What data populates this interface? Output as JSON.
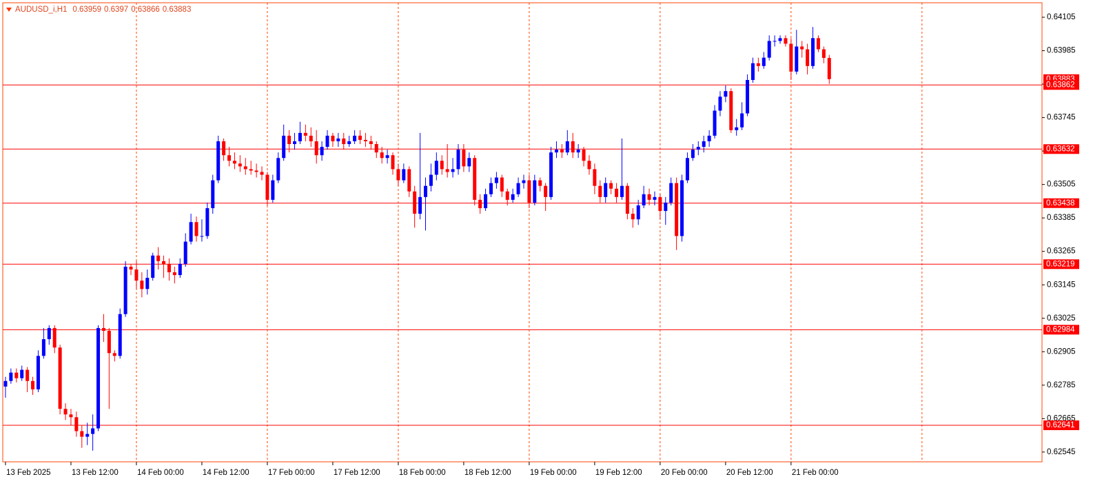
{
  "chart_data": {
    "type": "candlestick",
    "title": "AUDUSD_i,H1",
    "up_color": "#0000ff",
    "down_color": "#ff0000",
    "level_color": "#ff0000",
    "ylim": [
      0.6251,
      0.64157
    ],
    "xlim": [
      -0.5,
      190
    ],
    "yticks": [
      0.64105,
      0.63985,
      0.63865,
      0.63745,
      0.63625,
      0.63505,
      0.63385,
      0.63265,
      0.63145,
      0.63025,
      0.62905,
      0.62785,
      0.62665,
      0.62545
    ],
    "xticks": [
      {
        "value": 0,
        "label": "13 Feb 2025"
      },
      {
        "value": 12,
        "label": "13 Feb 12:00"
      },
      {
        "value": 24,
        "label": "14 Feb 00:00"
      },
      {
        "value": 36,
        "label": "14 Feb 12:00"
      },
      {
        "value": 48,
        "label": "17 Feb 00:00"
      },
      {
        "value": 60,
        "label": "17 Feb 12:00"
      },
      {
        "value": 72,
        "label": "18 Feb 00:00"
      },
      {
        "value": 84,
        "label": "18 Feb 12:00"
      },
      {
        "value": 96,
        "label": "19 Feb 00:00"
      },
      {
        "value": 108,
        "label": "19 Feb 12:00"
      },
      {
        "value": 120,
        "label": "20 Feb 00:00"
      },
      {
        "value": 132,
        "label": "20 Feb 12:00"
      },
      {
        "value": 144,
        "label": "21 Feb 00:00"
      }
    ],
    "separators": [
      24,
      48,
      72,
      96,
      120,
      144,
      168
    ],
    "levels": [
      0.63862,
      0.63632,
      0.63438,
      0.63219,
      0.62984,
      0.62641
    ],
    "candles": [
      [
        0.6278,
        0.62815,
        0.6274,
        0.628
      ],
      [
        0.628,
        0.62845,
        0.6279,
        0.6283
      ],
      [
        0.6283,
        0.62845,
        0.62795,
        0.6281
      ],
      [
        0.6281,
        0.62855,
        0.628,
        0.6284
      ],
      [
        0.6284,
        0.6285,
        0.6276,
        0.628
      ],
      [
        0.628,
        0.62815,
        0.6275,
        0.6277
      ],
      [
        0.6277,
        0.6291,
        0.6276,
        0.6289
      ],
      [
        0.6289,
        0.6299,
        0.6288,
        0.6295
      ],
      [
        0.6295,
        0.63,
        0.6293,
        0.6299
      ],
      [
        0.6299,
        0.63,
        0.629,
        0.6292
      ],
      [
        0.6292,
        0.6293,
        0.6268,
        0.627
      ],
      [
        0.627,
        0.6272,
        0.6266,
        0.6268
      ],
      [
        0.6268,
        0.627,
        0.6264,
        0.6267
      ],
      [
        0.6267,
        0.6269,
        0.626,
        0.6262
      ],
      [
        0.6262,
        0.6264,
        0.6256,
        0.626
      ],
      [
        0.626,
        0.6265,
        0.6257,
        0.6261
      ],
      [
        0.6261,
        0.6268,
        0.6255,
        0.6263
      ],
      [
        0.6263,
        0.63,
        0.6262,
        0.6299
      ],
      [
        0.6299,
        0.6304,
        0.6294,
        0.6298
      ],
      [
        0.6298,
        0.6299,
        0.627,
        0.629
      ],
      [
        0.629,
        0.6291,
        0.6287,
        0.6289
      ],
      [
        0.6289,
        0.6306,
        0.6288,
        0.6304
      ],
      [
        0.6304,
        0.6323,
        0.6303,
        0.6321
      ],
      [
        0.6321,
        0.6322,
        0.6318,
        0.632
      ],
      [
        0.632,
        0.6323,
        0.6313,
        0.6316
      ],
      [
        0.6316,
        0.6319,
        0.631,
        0.6313
      ],
      [
        0.6313,
        0.632,
        0.6311,
        0.6317
      ],
      [
        0.6317,
        0.6326,
        0.6316,
        0.6325
      ],
      [
        0.6325,
        0.6328,
        0.632,
        0.6323
      ],
      [
        0.6323,
        0.6325,
        0.6317,
        0.6322
      ],
      [
        0.6322,
        0.6324,
        0.6316,
        0.6319
      ],
      [
        0.6319,
        0.6321,
        0.6315,
        0.6318
      ],
      [
        0.6318,
        0.6324,
        0.6317,
        0.6322
      ],
      [
        0.6322,
        0.6333,
        0.6321,
        0.633
      ],
      [
        0.633,
        0.634,
        0.6329,
        0.6337
      ],
      [
        0.6337,
        0.6339,
        0.633,
        0.6332
      ],
      [
        0.6332,
        0.6338,
        0.633,
        0.6332
      ],
      [
        0.6332,
        0.6344,
        0.6331,
        0.6342
      ],
      [
        0.6342,
        0.6354,
        0.634,
        0.6352
      ],
      [
        0.6352,
        0.6368,
        0.6351,
        0.6366
      ],
      [
        0.6366,
        0.6367,
        0.6359,
        0.6361
      ],
      [
        0.6361,
        0.6364,
        0.6357,
        0.6359
      ],
      [
        0.6359,
        0.6362,
        0.6356,
        0.6358
      ],
      [
        0.6358,
        0.6361,
        0.6355,
        0.6357
      ],
      [
        0.6357,
        0.636,
        0.6354,
        0.6356
      ],
      [
        0.6356,
        0.6359,
        0.6354,
        0.63555
      ],
      [
        0.63555,
        0.6358,
        0.6353,
        0.6355
      ],
      [
        0.6355,
        0.6357,
        0.6352,
        0.6354
      ],
      [
        0.6354,
        0.6355,
        0.6343,
        0.6345
      ],
      [
        0.6345,
        0.6354,
        0.6344,
        0.6352
      ],
      [
        0.6352,
        0.6362,
        0.6351,
        0.636
      ],
      [
        0.636,
        0.6372,
        0.6359,
        0.6368
      ],
      [
        0.6368,
        0.637,
        0.6362,
        0.6365
      ],
      [
        0.6365,
        0.6369,
        0.6363,
        0.6366
      ],
      [
        0.6366,
        0.6373,
        0.6365,
        0.6369
      ],
      [
        0.6369,
        0.6372,
        0.6366,
        0.6368
      ],
      [
        0.6368,
        0.6371,
        0.6364,
        0.6366
      ],
      [
        0.6366,
        0.637,
        0.6358,
        0.6361
      ],
      [
        0.6361,
        0.6366,
        0.6359,
        0.6364
      ],
      [
        0.6364,
        0.637,
        0.6363,
        0.6368
      ],
      [
        0.6368,
        0.6369,
        0.6364,
        0.6366
      ],
      [
        0.6366,
        0.6369,
        0.6364,
        0.6367
      ],
      [
        0.6367,
        0.6369,
        0.6363,
        0.6365
      ],
      [
        0.6365,
        0.6368,
        0.6364,
        0.6366
      ],
      [
        0.6366,
        0.637,
        0.6365,
        0.6368
      ],
      [
        0.6368,
        0.637,
        0.6365,
        0.63665
      ],
      [
        0.63665,
        0.6369,
        0.6364,
        0.6366
      ],
      [
        0.6366,
        0.6368,
        0.6363,
        0.6365
      ],
      [
        0.6365,
        0.6366,
        0.636,
        0.6362
      ],
      [
        0.6362,
        0.6364,
        0.6358,
        0.636
      ],
      [
        0.636,
        0.6363,
        0.6358,
        0.6361
      ],
      [
        0.6361,
        0.6362,
        0.6354,
        0.6356
      ],
      [
        0.6356,
        0.6358,
        0.635,
        0.6352
      ],
      [
        0.6352,
        0.6358,
        0.6351,
        0.6356
      ],
      [
        0.6356,
        0.6357,
        0.6346,
        0.6348
      ],
      [
        0.6348,
        0.635,
        0.6335,
        0.634
      ],
      [
        0.634,
        0.6369,
        0.6338,
        0.6346
      ],
      [
        0.6346,
        0.6353,
        0.6334,
        0.635
      ],
      [
        0.635,
        0.6358,
        0.6348,
        0.6354
      ],
      [
        0.6354,
        0.6362,
        0.6352,
        0.6359
      ],
      [
        0.6359,
        0.6361,
        0.6354,
        0.6356
      ],
      [
        0.6356,
        0.6365,
        0.6353,
        0.6355
      ],
      [
        0.6355,
        0.636,
        0.6353,
        0.6356
      ],
      [
        0.6356,
        0.6365,
        0.6354,
        0.6363
      ],
      [
        0.6363,
        0.6365,
        0.6355,
        0.6357
      ],
      [
        0.6357,
        0.6362,
        0.6355,
        0.636
      ],
      [
        0.636,
        0.6361,
        0.6343,
        0.6345
      ],
      [
        0.6345,
        0.6347,
        0.634,
        0.6342
      ],
      [
        0.6342,
        0.6349,
        0.6341,
        0.6347
      ],
      [
        0.6347,
        0.6353,
        0.6346,
        0.6351
      ],
      [
        0.6351,
        0.6355,
        0.6349,
        0.6353
      ],
      [
        0.6353,
        0.6354,
        0.6346,
        0.6348
      ],
      [
        0.6348,
        0.6349,
        0.6343,
        0.6345
      ],
      [
        0.6345,
        0.6349,
        0.6344,
        0.6347
      ],
      [
        0.6347,
        0.6353,
        0.6346,
        0.6351
      ],
      [
        0.6351,
        0.6354,
        0.6349,
        0.6352
      ],
      [
        0.6352,
        0.6354,
        0.6342,
        0.6344
      ],
      [
        0.6344,
        0.6354,
        0.6343,
        0.6352
      ],
      [
        0.6352,
        0.6353,
        0.6348,
        0.635
      ],
      [
        0.635,
        0.6351,
        0.6341,
        0.6346
      ],
      [
        0.6346,
        0.6364,
        0.6345,
        0.6362
      ],
      [
        0.6362,
        0.6366,
        0.636,
        0.6363
      ],
      [
        0.6363,
        0.6365,
        0.636,
        0.6362
      ],
      [
        0.6362,
        0.637,
        0.6361,
        0.6366
      ],
      [
        0.6366,
        0.6369,
        0.636,
        0.6362
      ],
      [
        0.6362,
        0.6365,
        0.636,
        0.6363
      ],
      [
        0.6363,
        0.6364,
        0.6357,
        0.6359
      ],
      [
        0.6359,
        0.6361,
        0.6354,
        0.6356
      ],
      [
        0.6356,
        0.6358,
        0.6347,
        0.635
      ],
      [
        0.635,
        0.6352,
        0.6344,
        0.6346
      ],
      [
        0.6346,
        0.6353,
        0.6344,
        0.6351
      ],
      [
        0.6351,
        0.6352,
        0.6347,
        0.6349
      ],
      [
        0.6349,
        0.6351,
        0.6344,
        0.6346
      ],
      [
        0.6346,
        0.6367,
        0.6345,
        0.635
      ],
      [
        0.635,
        0.6351,
        0.6338,
        0.634
      ],
      [
        0.634,
        0.6342,
        0.6335,
        0.6338
      ],
      [
        0.6338,
        0.6345,
        0.6336,
        0.6343
      ],
      [
        0.6343,
        0.635,
        0.6342,
        0.6347
      ],
      [
        0.6347,
        0.6349,
        0.6343,
        0.6345
      ],
      [
        0.6345,
        0.6348,
        0.6343,
        0.6346
      ],
      [
        0.6346,
        0.6347,
        0.6338,
        0.6341
      ],
      [
        0.6341,
        0.6346,
        0.6336,
        0.6344
      ],
      [
        0.6344,
        0.6353,
        0.6343,
        0.6351
      ],
      [
        0.6351,
        0.6353,
        0.6327,
        0.6332
      ],
      [
        0.6332,
        0.6354,
        0.633,
        0.6352
      ],
      [
        0.6352,
        0.6362,
        0.6351,
        0.636
      ],
      [
        0.636,
        0.6365,
        0.6359,
        0.6363
      ],
      [
        0.6363,
        0.6366,
        0.6361,
        0.6364
      ],
      [
        0.6364,
        0.6368,
        0.6362,
        0.6366
      ],
      [
        0.6366,
        0.637,
        0.6364,
        0.6368
      ],
      [
        0.6368,
        0.6379,
        0.6367,
        0.6377
      ],
      [
        0.6377,
        0.6384,
        0.6375,
        0.6382
      ],
      [
        0.6382,
        0.6386,
        0.638,
        0.6384
      ],
      [
        0.6384,
        0.6385,
        0.6369,
        0.637
      ],
      [
        0.637,
        0.6374,
        0.6368,
        0.6371
      ],
      [
        0.6371,
        0.638,
        0.637,
        0.6376
      ],
      [
        0.6376,
        0.639,
        0.6375,
        0.6388
      ],
      [
        0.6388,
        0.6396,
        0.6387,
        0.6394
      ],
      [
        0.6394,
        0.6396,
        0.6391,
        0.6393
      ],
      [
        0.6393,
        0.6398,
        0.6392,
        0.6396
      ],
      [
        0.6396,
        0.6404,
        0.6395,
        0.6402
      ],
      [
        0.6402,
        0.6404,
        0.64,
        0.6402
      ],
      [
        0.6402,
        0.6404,
        0.6401,
        0.6403
      ],
      [
        0.6403,
        0.6404,
        0.64,
        0.6401
      ],
      [
        0.6401,
        0.6403,
        0.6388,
        0.6391
      ],
      [
        0.6391,
        0.6406,
        0.639,
        0.64
      ],
      [
        0.64,
        0.6402,
        0.6396,
        0.6399
      ],
      [
        0.6399,
        0.6401,
        0.639,
        0.6393
      ],
      [
        0.6393,
        0.6407,
        0.6392,
        0.6403
      ],
      [
        0.6403,
        0.6404,
        0.6398,
        0.6399
      ],
      [
        0.6399,
        0.64,
        0.6394,
        0.63959
      ],
      [
        0.63959,
        0.6397,
        0.63866,
        0.63883
      ]
    ]
  }
}
